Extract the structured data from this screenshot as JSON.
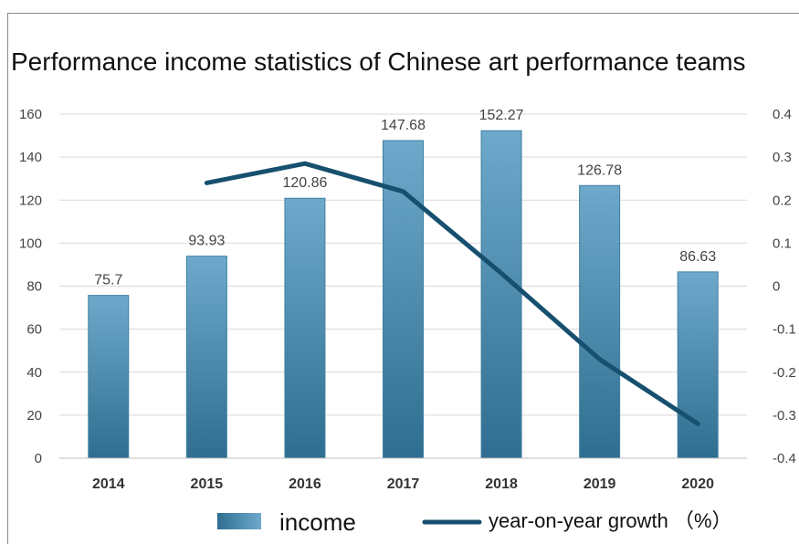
{
  "colors": {
    "bar_top": "#6ea9cb",
    "bar_bottom": "#2f6e90",
    "line": "#17506e",
    "grid": "#d9d9d9"
  },
  "chart_data": {
    "type": "bar",
    "title": "Performance income statistics of Chinese art performance teams",
    "categories": [
      "2014",
      "2015",
      "2016",
      "2017",
      "2018",
      "2019",
      "2020"
    ],
    "series": [
      {
        "name": "income",
        "type": "bar",
        "axis": "left",
        "values": [
          75.7,
          93.93,
          120.86,
          147.68,
          152.27,
          126.78,
          86.63
        ]
      },
      {
        "name": "year-on-year growth （%）",
        "type": "line",
        "axis": "right",
        "values": [
          null,
          0.24,
          0.285,
          0.22,
          0.03,
          -0.17,
          -0.32
        ]
      }
    ],
    "ylim_left": [
      0,
      160
    ],
    "yticks_left": [
      "0",
      "20",
      "40",
      "60",
      "80",
      "100",
      "120",
      "140",
      "160"
    ],
    "ylim_right": [
      -0.4,
      0.4
    ],
    "yticks_right": [
      "-0.4",
      "-0.3",
      "-0.2",
      "-0.1",
      "0",
      "0.1",
      "0.2",
      "0.3",
      "0.4"
    ],
    "grid": true,
    "legend_position": "bottom"
  }
}
